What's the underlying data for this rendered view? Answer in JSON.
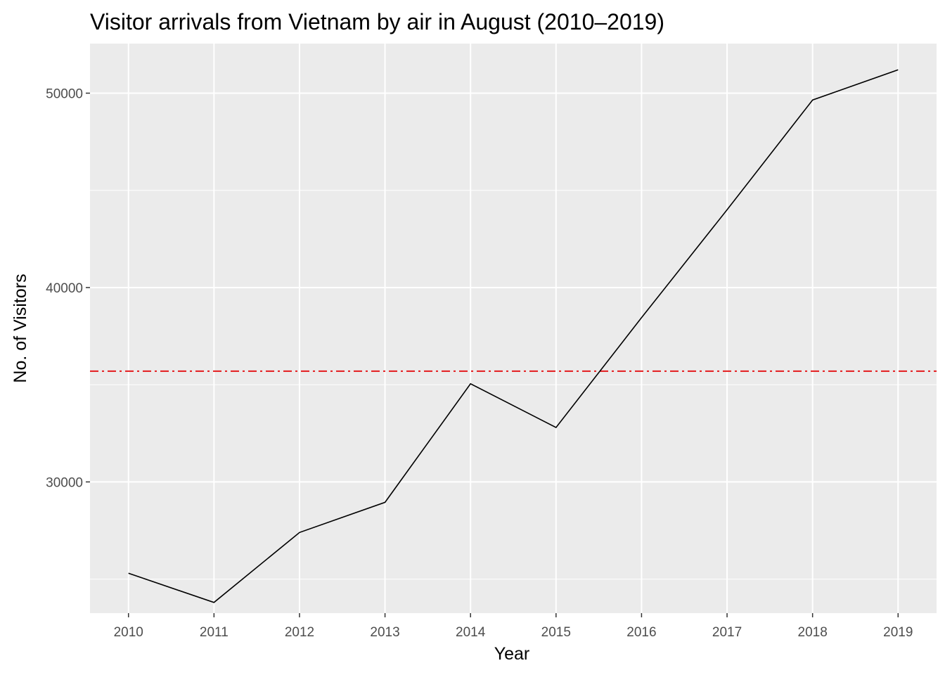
{
  "chart_data": {
    "type": "line",
    "title": "Visitor arrivals from Vietnam by air in August (2010–2019)",
    "xlabel": "Year",
    "ylabel": "No. of Visitors",
    "x": [
      2010,
      2011,
      2012,
      2013,
      2014,
      2015,
      2016,
      2017,
      2018,
      2019
    ],
    "series": [
      {
        "values": [
          25300,
          23800,
          27400,
          28950,
          35050,
          32800,
          38450,
          44000,
          49650,
          51200
        ]
      }
    ],
    "reference_line": {
      "y": 35700,
      "style": "dashdot",
      "color": "#e31a1c"
    },
    "xlim": [
      2009.55,
      2019.45
    ],
    "ylim": [
      23250,
      52550
    ],
    "y_ticks": [
      30000,
      40000,
      50000
    ],
    "y_minor_ticks": [
      25000,
      35000,
      45000
    ],
    "grid": true,
    "colors": {
      "panel": "#ebebeb",
      "grid": "#ffffff",
      "line": "#000000"
    }
  }
}
